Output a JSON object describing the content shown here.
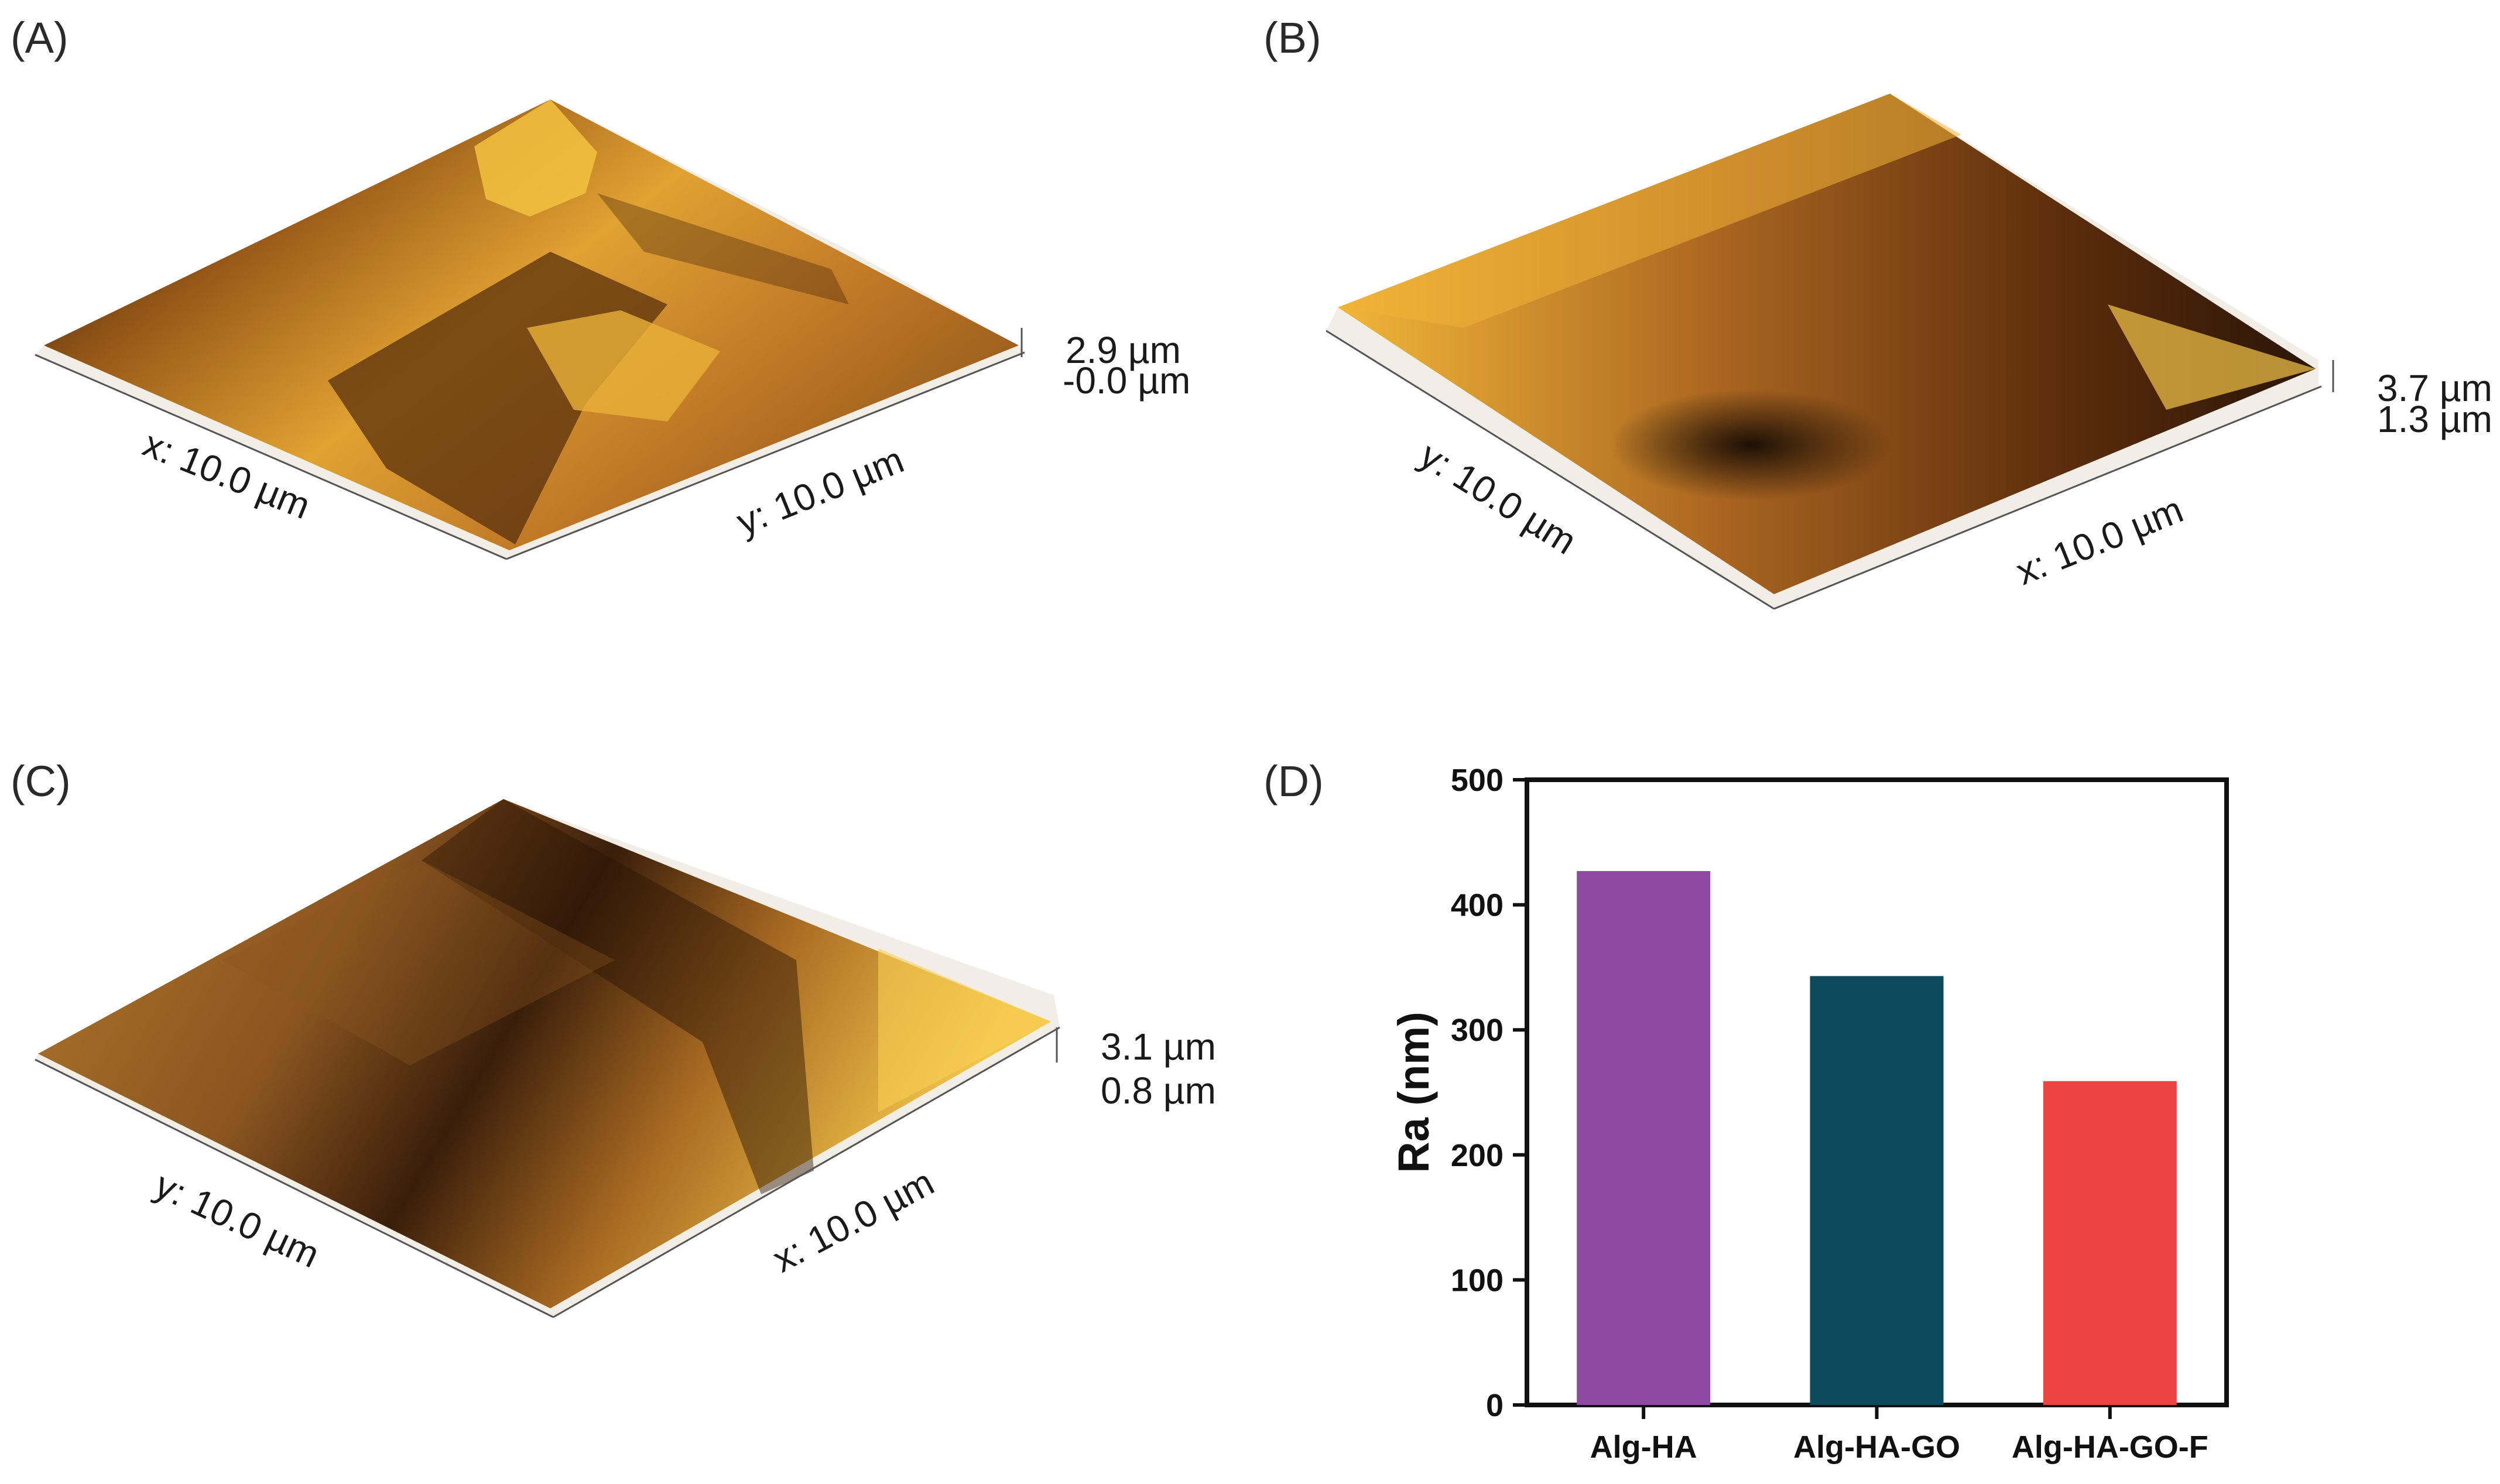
{
  "panels": {
    "A": {
      "label": "(A)",
      "axis1": "x: 10.0 µm",
      "axis2": "y: 10.0 µm",
      "z_max": "2.9 µm",
      "z_min": "-0.0 µm"
    },
    "B": {
      "label": "(B)",
      "axis1": "y: 10.0 µm",
      "axis2": "x: 10.0 µm",
      "z_max": "3.7 µm",
      "z_min": "1.3 µm"
    },
    "C": {
      "label": "(C)",
      "axis1": "y: 10.0 µm",
      "axis2": "x: 10.0 µm",
      "z_max": "3.1 µm",
      "z_min": "0.8 µm"
    },
    "D": {
      "label": "(D)"
    }
  },
  "colors": {
    "afm_dark": "#1a0f06",
    "afm_mid": "#9a5a18",
    "afm_light": "#f7d24e"
  },
  "chart_data": {
    "type": "bar",
    "categories": [
      "Alg-HA",
      "Alg-HA-GO",
      "Alg-HA-GO-F"
    ],
    "values": [
      427,
      343,
      259
    ],
    "colors": [
      "#8e4aa1",
      "#0c4a5e",
      "#ec4343"
    ],
    "title": "",
    "xlabel": "",
    "ylabel": "Ra (nm)",
    "ylim": [
      0,
      500
    ],
    "yticks": [
      0,
      100,
      200,
      300,
      400,
      500
    ],
    "grid": false,
    "legend": "none"
  }
}
